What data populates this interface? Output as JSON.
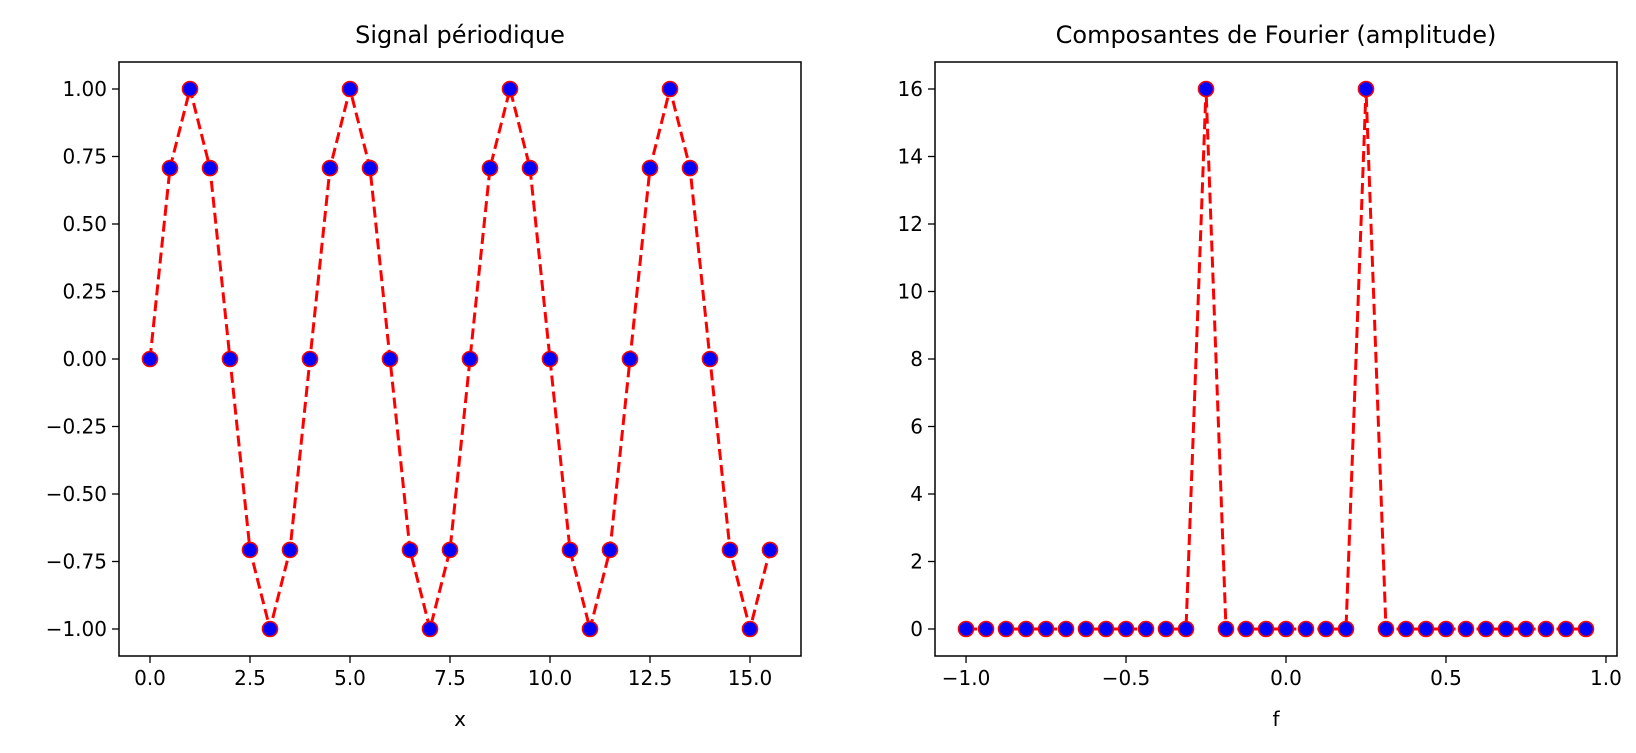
{
  "chart_data": [
    {
      "type": "line",
      "title": "Signal périodique",
      "xlabel": "x",
      "ylabel": "",
      "xlim": [
        -0.775,
        16.275
      ],
      "ylim": [
        -1.1,
        1.1
      ],
      "xticks": [
        0.0,
        2.5,
        5.0,
        7.5,
        10.0,
        12.5,
        15.0
      ],
      "xtick_labels": [
        "0.0",
        "2.5",
        "5.0",
        "7.5",
        "10.0",
        "12.5",
        "15.0"
      ],
      "yticks": [
        1.0,
        0.75,
        0.5,
        0.25,
        0.0,
        -0.25,
        -0.5,
        -0.75,
        -1.0
      ],
      "ytick_labels": [
        "1.00",
        "0.75",
        "0.50",
        "0.25",
        "0.00",
        "−0.25",
        "−0.50",
        "−0.75",
        "−1.00"
      ],
      "grid": false,
      "line_color": "#ff0000",
      "marker_edge_color": "#ff0000",
      "marker_face_color": "#0000ff",
      "series": [
        {
          "x": [
            0,
            0.5,
            1,
            1.5,
            2,
            2.5,
            3,
            3.5,
            4,
            4.5,
            5,
            5.5,
            6,
            6.5,
            7,
            7.5,
            8,
            8.5,
            9,
            9.5,
            10,
            10.5,
            11,
            11.5,
            12,
            12.5,
            13,
            13.5,
            14,
            14.5,
            15,
            15.5
          ],
          "y": [
            0,
            0.7071,
            1,
            0.7071,
            0,
            -0.7071,
            -1,
            -0.7071,
            0,
            0.7071,
            1,
            0.7071,
            0,
            -0.7071,
            -1,
            -0.7071,
            0,
            0.7071,
            1,
            0.7071,
            0,
            -0.7071,
            -1,
            -0.7071,
            0,
            0.7071,
            1,
            0.7071,
            0,
            -0.7071,
            -1,
            -0.7071
          ]
        }
      ]
    },
    {
      "type": "line",
      "title": "Composantes de Fourier (amplitude)",
      "xlabel": "f",
      "ylabel": "",
      "xlim": [
        -1.097,
        1.0345
      ],
      "ylim": [
        -0.8,
        16.8
      ],
      "xticks": [
        -1.0,
        -0.5,
        0.0,
        0.5,
        1.0
      ],
      "xtick_labels": [
        "−1.0",
        "−0.5",
        "0.0",
        "0.5",
        "1.0"
      ],
      "yticks": [
        16,
        14,
        12,
        10,
        8,
        6,
        4,
        2,
        0
      ],
      "ytick_labels": [
        "16",
        "14",
        "12",
        "10",
        "8",
        "6",
        "4",
        "2",
        "0"
      ],
      "grid": false,
      "line_color": "#ff0000",
      "marker_edge_color": "#ff0000",
      "marker_face_color": "#0000ff",
      "series": [
        {
          "x": [
            -1.0,
            -0.9375,
            -0.875,
            -0.8125,
            -0.75,
            -0.6875,
            -0.625,
            -0.5625,
            -0.5,
            -0.4375,
            -0.375,
            -0.3125,
            -0.25,
            -0.1875,
            -0.125,
            -0.0625,
            0.0,
            0.0625,
            0.125,
            0.1875,
            0.25,
            0.3125,
            0.375,
            0.4375,
            0.5,
            0.5625,
            0.625,
            0.6875,
            0.75,
            0.8125,
            0.875,
            0.9375
          ],
          "y": [
            0,
            0,
            0,
            0,
            0,
            0,
            0,
            0,
            0,
            0,
            0,
            0,
            16,
            0,
            0,
            0,
            0,
            0,
            0,
            0,
            16,
            0,
            0,
            0,
            0,
            0,
            0,
            0,
            0,
            0,
            0,
            0
          ]
        }
      ]
    }
  ]
}
